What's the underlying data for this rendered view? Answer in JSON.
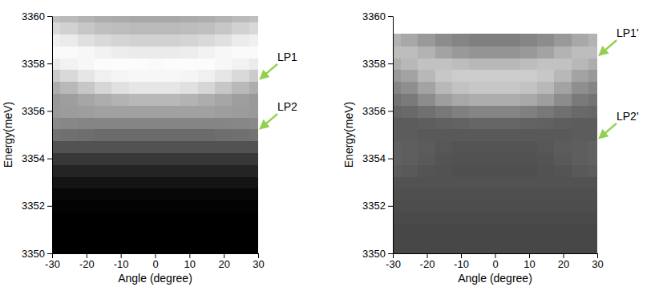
{
  "chart_data": [
    {
      "type": "heatmap",
      "x_label": "Angle (degree)",
      "y_label": "Energy(meV)",
      "xlim": [
        -30,
        30
      ],
      "ylim": [
        3350,
        3360
      ],
      "xticks": [
        -30,
        -20,
        -10,
        0,
        10,
        20,
        30
      ],
      "yticks": [
        3350,
        3352,
        3354,
        3356,
        3358,
        3360
      ],
      "zlim": [
        0,
        100
      ],
      "x": [
        -30,
        -25,
        -20,
        -15,
        -10,
        -5,
        0,
        5,
        10,
        15,
        20,
        25,
        30
      ],
      "y": [
        3350,
        3350.5,
        3351,
        3351.5,
        3352,
        3352.5,
        3353,
        3353.5,
        3354,
        3354.5,
        3355,
        3355.5,
        3356,
        3356.5,
        3357,
        3357.5,
        3358,
        3358.5,
        3359,
        3359.5,
        3360
      ],
      "z": [
        [
          0,
          0,
          0,
          0,
          0,
          0,
          0,
          0,
          0,
          0,
          0,
          0,
          0
        ],
        [
          0,
          0,
          0,
          0,
          0,
          0,
          0,
          0,
          0,
          0,
          0,
          0,
          0
        ],
        [
          0,
          0,
          0,
          0,
          0,
          0,
          0,
          0,
          0,
          0,
          0,
          0,
          0
        ],
        [
          0,
          0,
          0,
          0,
          0,
          0,
          0,
          0,
          0,
          0,
          0,
          0,
          0
        ],
        [
          1,
          1,
          1,
          1,
          1,
          1,
          1,
          1,
          1,
          1,
          1,
          1,
          1
        ],
        [
          3,
          3,
          3,
          3,
          3,
          3,
          3,
          3,
          3,
          3,
          3,
          3,
          3
        ],
        [
          8,
          8,
          8,
          8,
          8,
          8,
          8,
          8,
          8,
          8,
          8,
          8,
          8
        ],
        [
          14,
          14,
          14,
          14,
          14,
          14,
          14,
          14,
          14,
          14,
          14,
          14,
          14
        ],
        [
          22,
          22,
          22,
          22,
          22,
          22,
          22,
          22,
          22,
          22,
          22,
          22,
          22
        ],
        [
          32,
          32,
          32,
          32,
          32,
          32,
          32,
          32,
          32,
          32,
          32,
          32,
          32
        ],
        [
          45,
          44,
          43,
          42,
          42,
          42,
          42,
          42,
          42,
          42,
          43,
          44,
          45
        ],
        [
          54,
          53,
          52,
          52,
          52,
          52,
          52,
          52,
          52,
          52,
          52,
          53,
          54
        ],
        [
          60,
          61,
          62,
          63,
          63,
          63,
          63,
          63,
          63,
          63,
          62,
          61,
          60
        ],
        [
          60,
          62,
          65,
          68,
          70,
          72,
          72,
          72,
          70,
          68,
          65,
          62,
          60
        ],
        [
          68,
          72,
          78,
          84,
          88,
          90,
          90,
          90,
          88,
          84,
          78,
          72,
          68
        ],
        [
          80,
          85,
          90,
          94,
          96,
          97,
          97,
          97,
          96,
          94,
          90,
          85,
          80
        ],
        [
          92,
          95,
          97,
          99,
          99,
          99,
          98,
          99,
          99,
          99,
          97,
          95,
          92
        ],
        [
          98,
          98,
          97,
          95,
          93,
          92,
          92,
          92,
          93,
          95,
          97,
          98,
          98
        ],
        [
          94,
          92,
          88,
          85,
          83,
          82,
          82,
          82,
          83,
          85,
          88,
          92,
          94
        ],
        [
          85,
          82,
          78,
          75,
          74,
          73,
          73,
          73,
          74,
          75,
          78,
          82,
          85
        ],
        [
          75,
          73,
          70,
          68,
          67,
          66,
          66,
          66,
          67,
          68,
          70,
          73,
          75
        ]
      ],
      "annotations": [
        {
          "text": "LP1",
          "x": 30,
          "y": 3357.3
        },
        {
          "text": "LP2",
          "x": 30,
          "y": 3355.2
        }
      ]
    },
    {
      "type": "heatmap",
      "x_label": "Angle (degree)",
      "y_label": "Energy(meV)",
      "xlim": [
        -30,
        30
      ],
      "ylim": [
        3350,
        3360
      ],
      "xticks": [
        -30,
        -20,
        -10,
        0,
        10,
        20,
        30
      ],
      "yticks": [
        3350,
        3352,
        3354,
        3356,
        3358,
        3360
      ],
      "zlim": [
        0,
        100
      ],
      "x": [
        -30,
        -25,
        -20,
        -15,
        -10,
        -5,
        0,
        5,
        10,
        15,
        20,
        25,
        30
      ],
      "y": [
        3350,
        3350.5,
        3351,
        3351.5,
        3352,
        3352.5,
        3353,
        3353.5,
        3354,
        3354.5,
        3355,
        3355.5,
        3356,
        3356.5,
        3357,
        3357.5,
        3358,
        3358.5,
        3359,
        3359.5,
        3360
      ],
      "z": [
        [
          28,
          28,
          28,
          28,
          28,
          28,
          28,
          28,
          28,
          28,
          28,
          28,
          28
        ],
        [
          28,
          28,
          28,
          28,
          28,
          28,
          28,
          28,
          28,
          28,
          28,
          28,
          28
        ],
        [
          28,
          28,
          28,
          28,
          28,
          28,
          28,
          28,
          28,
          28,
          28,
          28,
          28
        ],
        [
          29,
          29,
          29,
          29,
          29,
          29,
          29,
          29,
          29,
          29,
          29,
          29,
          29
        ],
        [
          30,
          30,
          30,
          30,
          30,
          30,
          30,
          30,
          30,
          30,
          30,
          30,
          30
        ],
        [
          31,
          31,
          31,
          31,
          31,
          31,
          31,
          31,
          31,
          31,
          31,
          31,
          31
        ],
        [
          32,
          32,
          32,
          32,
          32,
          32,
          32,
          32,
          32,
          32,
          32,
          32,
          32
        ],
        [
          36,
          35,
          33,
          32,
          31,
          31,
          31,
          31,
          31,
          32,
          33,
          35,
          36
        ],
        [
          38,
          37,
          35,
          33,
          32,
          32,
          32,
          32,
          32,
          33,
          35,
          37,
          38
        ],
        [
          38,
          37,
          36,
          34,
          33,
          33,
          33,
          33,
          33,
          34,
          36,
          37,
          38
        ],
        [
          36,
          36,
          35,
          35,
          35,
          35,
          35,
          35,
          35,
          35,
          35,
          36,
          36
        ],
        [
          36,
          36,
          37,
          38,
          39,
          40,
          40,
          40,
          39,
          38,
          37,
          36,
          36
        ],
        [
          40,
          41,
          44,
          47,
          50,
          52,
          52,
          52,
          50,
          47,
          44,
          41,
          40
        ],
        [
          45,
          48,
          55,
          62,
          66,
          68,
          68,
          68,
          66,
          62,
          55,
          48,
          45
        ],
        [
          52,
          56,
          64,
          72,
          76,
          78,
          78,
          78,
          76,
          72,
          64,
          56,
          52
        ],
        [
          60,
          64,
          72,
          78,
          80,
          80,
          80,
          80,
          80,
          78,
          72,
          64,
          60
        ],
        [
          68,
          72,
          76,
          76,
          74,
          72,
          72,
          72,
          74,
          76,
          76,
          72,
          68
        ],
        [
          74,
          74,
          70,
          64,
          60,
          58,
          58,
          58,
          60,
          64,
          70,
          74,
          74
        ],
        [
          70,
          66,
          60,
          55,
          52,
          50,
          50,
          50,
          52,
          55,
          60,
          66,
          70
        ],
        [
          null,
          null,
          null,
          null,
          null,
          null,
          null,
          null,
          null,
          null,
          null,
          null,
          null
        ],
        [
          null,
          null,
          null,
          null,
          null,
          null,
          null,
          null,
          null,
          null,
          null,
          null,
          null
        ]
      ],
      "annotations": [
        {
          "text": "LP1'",
          "x": 30,
          "y": 3358.3
        },
        {
          "text": "LP2'",
          "x": 30,
          "y": 3354.8
        }
      ]
    }
  ]
}
